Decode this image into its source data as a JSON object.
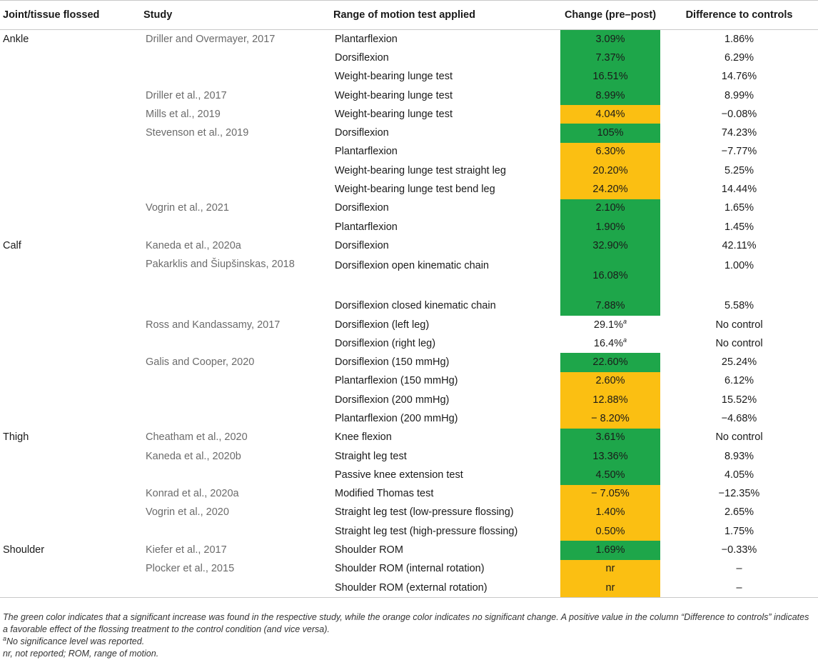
{
  "headers": {
    "joint": "Joint/tissue flossed",
    "study": "Study",
    "test": "Range of motion test applied",
    "change": "Change (pre–post)",
    "diff": "Difference to controls"
  },
  "colors": {
    "significant": "#1ea64a",
    "not_significant": "#fbbf12"
  },
  "rows": [
    {
      "joint": "Ankle",
      "study": "Driller and Overmayer, 2017",
      "test": "Plantarflexion",
      "change": "3.09%",
      "sig": "sig",
      "diff": "1.86%"
    },
    {
      "joint": "",
      "study": "",
      "test": "Dorsiflexion",
      "change": "7.37%",
      "sig": "sig",
      "diff": "6.29%"
    },
    {
      "joint": "",
      "study": "",
      "test": "Weight-bearing lunge test",
      "change": "16.51%",
      "sig": "sig",
      "diff": "14.76%"
    },
    {
      "joint": "",
      "study": "Driller et al., 2017",
      "test": "Weight-bearing lunge test",
      "change": "8.99%",
      "sig": "sig",
      "diff": "8.99%"
    },
    {
      "joint": "",
      "study": "Mills et al., 2019",
      "test": "Weight-bearing lunge test",
      "change": "4.04%",
      "sig": "ns",
      "diff": "−0.08%"
    },
    {
      "joint": "",
      "study": "Stevenson et al., 2019",
      "test": "Dorsiflexion",
      "change": "105%",
      "sig": "sig",
      "diff": "74.23%"
    },
    {
      "joint": "",
      "study": "",
      "test": "Plantarflexion",
      "change": "6.30%",
      "sig": "ns",
      "diff": "−7.77%"
    },
    {
      "joint": "",
      "study": "",
      "test": "Weight-bearing lunge test straight leg",
      "change": "20.20%",
      "sig": "ns",
      "diff": "5.25%"
    },
    {
      "joint": "",
      "study": "",
      "test": "Weight-bearing lunge test bend leg",
      "change": "24.20%",
      "sig": "ns",
      "diff": "14.44%"
    },
    {
      "joint": "",
      "study": "Vogrin et al., 2021",
      "test": "Dorsiflexion",
      "change": "2.10%",
      "sig": "sig",
      "diff": "1.65%"
    },
    {
      "joint": "",
      "study": "",
      "test": "Plantarflexion",
      "change": "1.90%",
      "sig": "sig",
      "diff": "1.45%"
    },
    {
      "joint": "Calf",
      "study": "Kaneda et al., 2020a",
      "test": "Dorsiflexion",
      "change": "32.90%",
      "sig": "sig",
      "diff": "42.11%"
    },
    {
      "joint": "",
      "study": "Pakarklis and Šiupšinskas, 2018",
      "test": "Dorsiflexion open kinematic chain",
      "change": "16.08%",
      "sig": "sig",
      "diff": "1.00%",
      "tall": true
    },
    {
      "joint": "",
      "study": "",
      "test": "Dorsiflexion closed kinematic chain",
      "change": "7.88%",
      "sig": "sig",
      "diff": "5.58%"
    },
    {
      "joint": "",
      "study": "Ross and Kandassamy, 2017",
      "test": "Dorsiflexion (left leg)",
      "change": "29.1%",
      "sup": "a",
      "sig": "none",
      "diff": "No control"
    },
    {
      "joint": "",
      "study": "",
      "test": "Dorsiflexion (right leg)",
      "change": "16.4%",
      "sup": "a",
      "sig": "none",
      "diff": "No control"
    },
    {
      "joint": "",
      "study": "Galis and Cooper, 2020",
      "test": "Dorsiflexion (150 mmHg)",
      "change": "22.60%",
      "sig": "sig",
      "diff": "25.24%"
    },
    {
      "joint": "",
      "study": "",
      "test": "Plantarflexion (150 mmHg)",
      "change": "2.60%",
      "sig": "ns",
      "diff": "6.12%"
    },
    {
      "joint": "",
      "study": "",
      "test": "Dorsiflexion (200 mmHg)",
      "change": "12.88%",
      "sig": "ns",
      "diff": "15.52%"
    },
    {
      "joint": "",
      "study": "",
      "test": "Plantarflexion (200 mmHg)",
      "change": "− 8.20%",
      "sig": "ns",
      "diff": "−4.68%"
    },
    {
      "joint": "Thigh",
      "study": "Cheatham et al., 2020",
      "test": "Knee flexion",
      "change": "3.61%",
      "sig": "sig",
      "diff": "No control"
    },
    {
      "joint": "",
      "study": "Kaneda et al., 2020b",
      "test": "Straight leg test",
      "change": "13.36%",
      "sig": "sig",
      "diff": "8.93%"
    },
    {
      "joint": "",
      "study": "",
      "test": "Passive knee extension test",
      "change": "4.50%",
      "sig": "sig",
      "diff": "4.05%"
    },
    {
      "joint": "",
      "study": "Konrad et al., 2020a",
      "test": "Modified Thomas test",
      "change": "− 7.05%",
      "sig": "ns",
      "diff": "−12.35%"
    },
    {
      "joint": "",
      "study": "Vogrin et al., 2020",
      "test": "Straight leg test (low-pressure flossing)",
      "change": "1.40%",
      "sig": "ns",
      "diff": "2.65%"
    },
    {
      "joint": "",
      "study": "",
      "test": "Straight leg test (high-pressure flossing)",
      "change": "0.50%",
      "sig": "ns",
      "diff": "1.75%"
    },
    {
      "joint": "Shoulder",
      "study": "Kiefer et al., 2017",
      "test": "Shoulder ROM",
      "change": "1.69%",
      "sig": "sig",
      "diff": "−0.33%"
    },
    {
      "joint": "",
      "study": "Plocker et al., 2015",
      "test": "Shoulder ROM (internal rotation)",
      "change": "nr",
      "sig": "ns",
      "diff": "–"
    },
    {
      "joint": "",
      "study": "",
      "test": "Shoulder ROM (external rotation)",
      "change": "nr",
      "sig": "ns",
      "diff": "–"
    }
  ],
  "footnotes": {
    "color_note": "The green color indicates that a significant increase was found in the respective study, while the orange color indicates no significant change. A positive value in the column “Difference to controls” indicates a favorable effect of the flossing treatment to the control condition (and vice versa).",
    "sup_marker": "a",
    "sup_note": "No significance level was reported.",
    "abbrev": "nr, not reported; ROM, range of motion."
  }
}
